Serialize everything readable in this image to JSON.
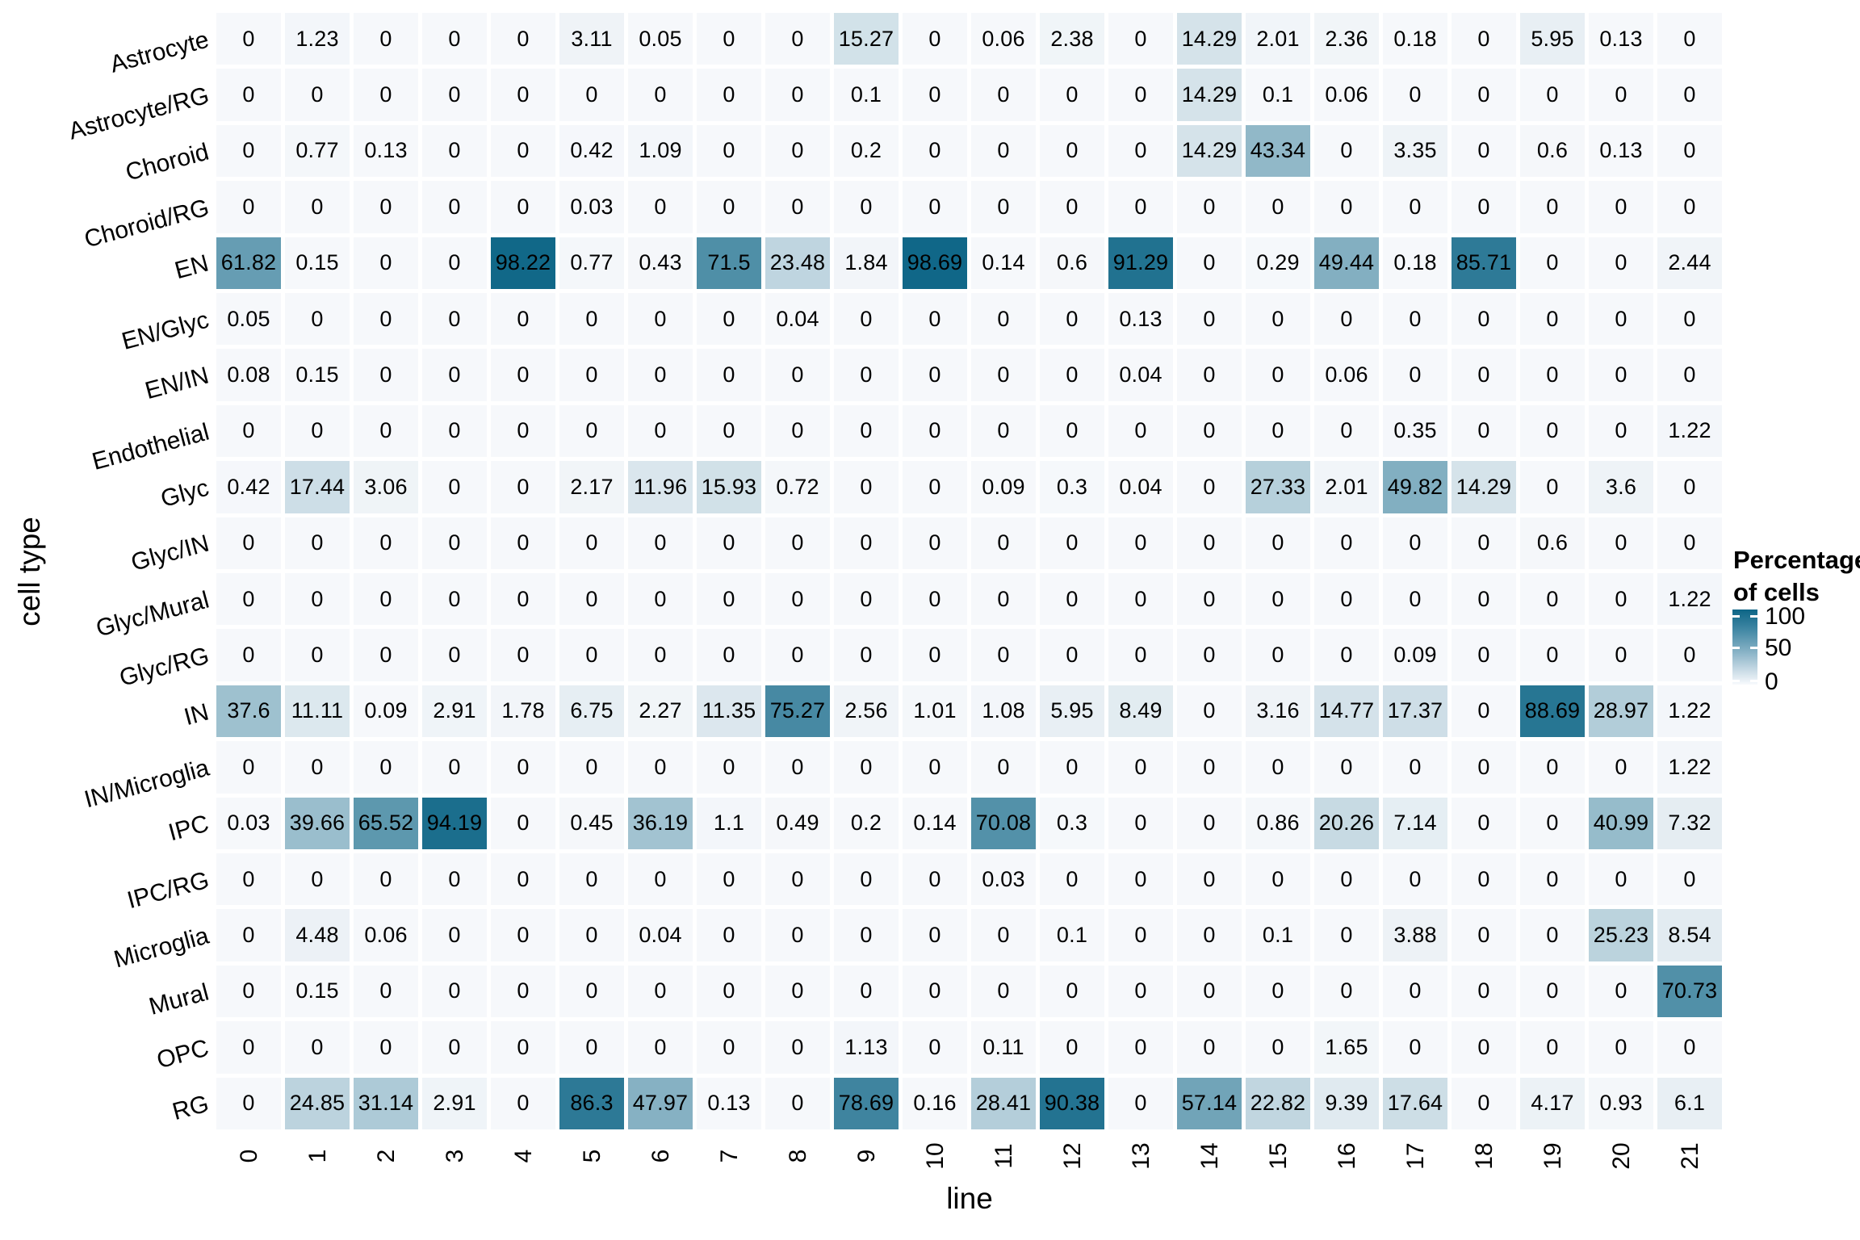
{
  "figure": {
    "y_axis_title": "cell type",
    "x_axis_title": "line",
    "legend": {
      "title_line1": "Percentage",
      "title_line2": "of cells",
      "ticks": [
        "100",
        "50",
        "0"
      ]
    }
  },
  "chart_data": {
    "type": "heatmap",
    "title": "",
    "xlabel": "line",
    "ylabel": "cell type",
    "legend_title": "Percentage of cells",
    "legend_position": "right",
    "scale": {
      "min": 0,
      "max": 100,
      "low_color": "#f6f8fb",
      "high_color": "#0d6586"
    },
    "x_categories": [
      "0",
      "1",
      "2",
      "3",
      "4",
      "5",
      "6",
      "7",
      "8",
      "9",
      "10",
      "11",
      "12",
      "13",
      "14",
      "15",
      "16",
      "17",
      "18",
      "19",
      "20",
      "21"
    ],
    "y_categories": [
      "Astrocyte",
      "Astrocyte/RG",
      "Choroid",
      "Choroid/RG",
      "EN",
      "EN/Glyc",
      "EN/IN",
      "Endothelial",
      "Glyc",
      "Glyc/IN",
      "Glyc/Mural",
      "Glyc/RG",
      "IN",
      "IN/Microglia",
      "IPC",
      "IPC/RG",
      "Microglia",
      "Mural",
      "OPC",
      "RG"
    ],
    "values": [
      [
        0,
        1.23,
        0,
        0,
        0,
        3.11,
        0.05,
        0,
        0,
        15.27,
        0,
        0.06,
        2.38,
        0,
        14.29,
        2.01,
        2.36,
        0.18,
        0,
        5.95,
        0.13,
        0
      ],
      [
        0,
        0,
        0,
        0,
        0,
        0,
        0,
        0,
        0,
        0.1,
        0,
        0,
        0,
        0,
        14.29,
        0.1,
        0.06,
        0,
        0,
        0,
        0,
        0
      ],
      [
        0,
        0.77,
        0.13,
        0,
        0,
        0.42,
        1.09,
        0,
        0,
        0.2,
        0,
        0,
        0,
        0,
        14.29,
        43.34,
        0,
        3.35,
        0,
        0.6,
        0.13,
        0
      ],
      [
        0,
        0,
        0,
        0,
        0,
        0.03,
        0,
        0,
        0,
        0,
        0,
        0,
        0,
        0,
        0,
        0,
        0,
        0,
        0,
        0,
        0,
        0
      ],
      [
        61.82,
        0.15,
        0,
        0,
        98.22,
        0.77,
        0.43,
        71.5,
        23.48,
        1.84,
        98.69,
        0.14,
        0.6,
        91.29,
        0,
        0.29,
        49.44,
        0.18,
        85.71,
        0,
        0,
        2.44
      ],
      [
        0.05,
        0,
        0,
        0,
        0,
        0,
        0,
        0,
        0.04,
        0,
        0,
        0,
        0,
        0.13,
        0,
        0,
        0,
        0,
        0,
        0,
        0,
        0
      ],
      [
        0.08,
        0.15,
        0,
        0,
        0,
        0,
        0,
        0,
        0,
        0,
        0,
        0,
        0,
        0.04,
        0,
        0,
        0.06,
        0,
        0,
        0,
        0,
        0
      ],
      [
        0,
        0,
        0,
        0,
        0,
        0,
        0,
        0,
        0,
        0,
        0,
        0,
        0,
        0,
        0,
        0,
        0,
        0.35,
        0,
        0,
        0,
        1.22
      ],
      [
        0.42,
        17.44,
        3.06,
        0,
        0,
        2.17,
        11.96,
        15.93,
        0.72,
        0,
        0,
        0.09,
        0.3,
        0.04,
        0,
        27.33,
        2.01,
        49.82,
        14.29,
        0,
        3.6,
        0
      ],
      [
        0,
        0,
        0,
        0,
        0,
        0,
        0,
        0,
        0,
        0,
        0,
        0,
        0,
        0,
        0,
        0,
        0,
        0,
        0,
        0.6,
        0,
        0
      ],
      [
        0,
        0,
        0,
        0,
        0,
        0,
        0,
        0,
        0,
        0,
        0,
        0,
        0,
        0,
        0,
        0,
        0,
        0,
        0,
        0,
        0,
        1.22
      ],
      [
        0,
        0,
        0,
        0,
        0,
        0,
        0,
        0,
        0,
        0,
        0,
        0,
        0,
        0,
        0,
        0,
        0,
        0.09,
        0,
        0,
        0,
        0
      ],
      [
        37.6,
        11.11,
        0.09,
        2.91,
        1.78,
        6.75,
        2.27,
        11.35,
        75.27,
        2.56,
        1.01,
        1.08,
        5.95,
        8.49,
        0,
        3.16,
        14.77,
        17.37,
        0,
        88.69,
        28.97,
        1.22
      ],
      [
        0,
        0,
        0,
        0,
        0,
        0,
        0,
        0,
        0,
        0,
        0,
        0,
        0,
        0,
        0,
        0,
        0,
        0,
        0,
        0,
        0,
        1.22
      ],
      [
        0.03,
        39.66,
        65.52,
        94.19,
        0,
        0.45,
        36.19,
        1.1,
        0.49,
        0.2,
        0.14,
        70.08,
        0.3,
        0,
        0,
        0.86,
        20.26,
        7.14,
        0,
        0,
        40.99,
        7.32
      ],
      [
        0,
        0,
        0,
        0,
        0,
        0,
        0,
        0,
        0,
        0,
        0,
        0.03,
        0,
        0,
        0,
        0,
        0,
        0,
        0,
        0,
        0,
        0
      ],
      [
        0,
        4.48,
        0.06,
        0,
        0,
        0,
        0.04,
        0,
        0,
        0,
        0,
        0,
        0.1,
        0,
        0,
        0.1,
        0,
        3.88,
        0,
        0,
        25.23,
        8.54
      ],
      [
        0,
        0.15,
        0,
        0,
        0,
        0,
        0,
        0,
        0,
        0,
        0,
        0,
        0,
        0,
        0,
        0,
        0,
        0,
        0,
        0,
        0,
        70.73
      ],
      [
        0,
        0,
        0,
        0,
        0,
        0,
        0,
        0,
        0,
        1.13,
        0,
        0.11,
        0,
        0,
        0,
        0,
        1.65,
        0,
        0,
        0,
        0,
        0
      ],
      [
        0,
        24.85,
        31.14,
        2.91,
        0,
        86.3,
        47.97,
        0.13,
        0,
        78.69,
        0.16,
        28.41,
        90.38,
        0,
        57.14,
        22.82,
        9.39,
        17.64,
        0,
        4.17,
        0.93,
        6.1
      ]
    ]
  }
}
